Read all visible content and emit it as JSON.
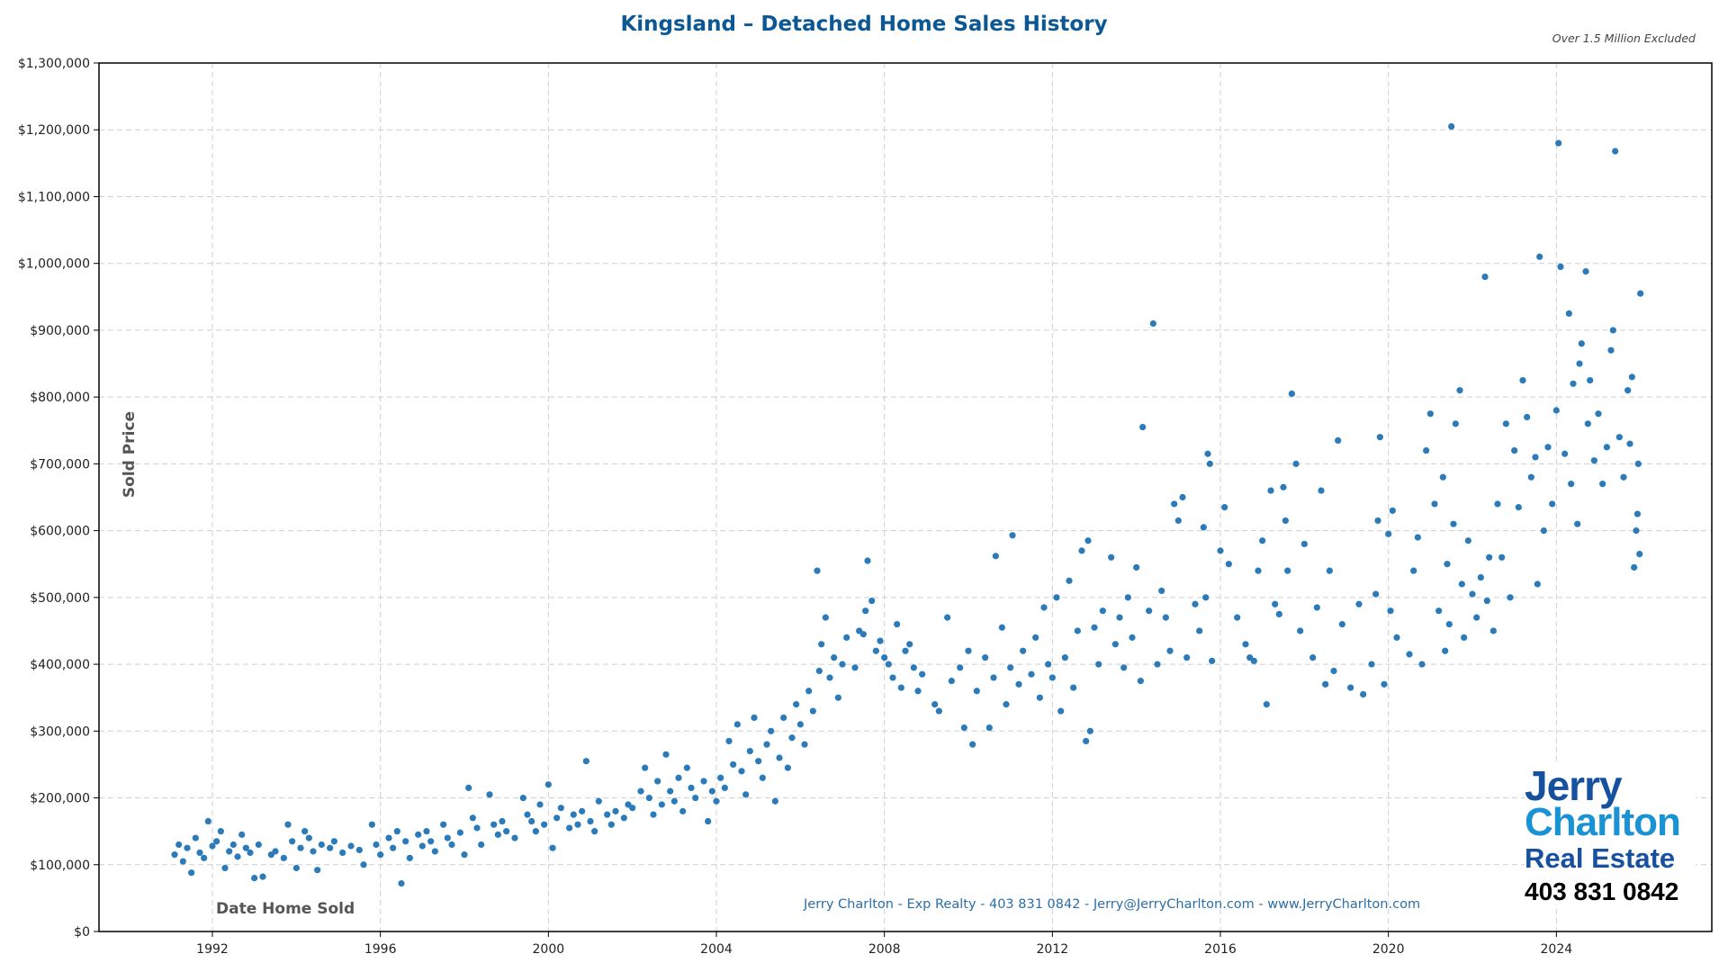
{
  "chart_data": {
    "type": "scatter",
    "title": "Kingsland – Detached Home Sales History",
    "subtitle": "Over 1.5 Million Excluded",
    "xlabel": "Date Home Sold",
    "ylabel": "Sold Price",
    "xlim": [
      1989.3,
      2027.7
    ],
    "ylim": [
      0,
      1300000
    ],
    "x_ticks": [
      "1992",
      "1996",
      "2000",
      "2004",
      "2008",
      "2012",
      "2016",
      "2020",
      "2024"
    ],
    "y_ticks": [
      "$0",
      "$100,000",
      "$200,000",
      "$300,000",
      "$400,000",
      "$500,000",
      "$600,000",
      "$700,000",
      "$800,000",
      "$900,000",
      "$1,000,000",
      "$1,100,000",
      "$1,200,000",
      "$1,300,000"
    ],
    "grid": true,
    "point_color": "#2b7bba",
    "points": [
      [
        1991.1,
        115000
      ],
      [
        1991.2,
        130000
      ],
      [
        1991.3,
        105000
      ],
      [
        1991.4,
        125000
      ],
      [
        1991.5,
        88000
      ],
      [
        1991.6,
        140000
      ],
      [
        1991.7,
        118000
      ],
      [
        1991.8,
        110000
      ],
      [
        1991.9,
        165000
      ],
      [
        1992.0,
        128000
      ],
      [
        1992.1,
        135000
      ],
      [
        1992.2,
        150000
      ],
      [
        1992.3,
        95000
      ],
      [
        1992.4,
        120000
      ],
      [
        1992.5,
        130000
      ],
      [
        1992.6,
        112000
      ],
      [
        1992.7,
        145000
      ],
      [
        1992.8,
        125000
      ],
      [
        1992.9,
        118000
      ],
      [
        1993.0,
        80000
      ],
      [
        1993.1,
        130000
      ],
      [
        1993.2,
        82000
      ],
      [
        1993.4,
        115000
      ],
      [
        1993.5,
        120000
      ],
      [
        1993.7,
        110000
      ],
      [
        1993.8,
        160000
      ],
      [
        1993.9,
        135000
      ],
      [
        1994.0,
        95000
      ],
      [
        1994.1,
        125000
      ],
      [
        1994.2,
        150000
      ],
      [
        1994.3,
        140000
      ],
      [
        1994.4,
        120000
      ],
      [
        1994.5,
        92000
      ],
      [
        1994.6,
        130000
      ],
      [
        1994.8,
        125000
      ],
      [
        1994.9,
        135000
      ],
      [
        1995.1,
        118000
      ],
      [
        1995.3,
        128000
      ],
      [
        1995.5,
        122000
      ],
      [
        1995.6,
        100000
      ],
      [
        1995.8,
        160000
      ],
      [
        1995.9,
        130000
      ],
      [
        1996.0,
        115000
      ],
      [
        1996.2,
        140000
      ],
      [
        1996.3,
        125000
      ],
      [
        1996.4,
        150000
      ],
      [
        1996.5,
        72000
      ],
      [
        1996.6,
        135000
      ],
      [
        1996.7,
        110000
      ],
      [
        1996.9,
        145000
      ],
      [
        1997.0,
        128000
      ],
      [
        1997.1,
        150000
      ],
      [
        1997.2,
        135000
      ],
      [
        1997.3,
        120000
      ],
      [
        1997.5,
        160000
      ],
      [
        1997.6,
        140000
      ],
      [
        1997.7,
        130000
      ],
      [
        1997.9,
        148000
      ],
      [
        1998.0,
        115000
      ],
      [
        1998.1,
        215000
      ],
      [
        1998.2,
        170000
      ],
      [
        1998.3,
        155000
      ],
      [
        1998.4,
        130000
      ],
      [
        1998.6,
        205000
      ],
      [
        1998.7,
        160000
      ],
      [
        1998.8,
        145000
      ],
      [
        1998.9,
        165000
      ],
      [
        1999.0,
        150000
      ],
      [
        1999.2,
        140000
      ],
      [
        1999.4,
        200000
      ],
      [
        1999.5,
        175000
      ],
      [
        1999.6,
        165000
      ],
      [
        1999.7,
        150000
      ],
      [
        1999.8,
        190000
      ],
      [
        1999.9,
        160000
      ],
      [
        2000.0,
        220000
      ],
      [
        2000.1,
        125000
      ],
      [
        2000.2,
        170000
      ],
      [
        2000.3,
        185000
      ],
      [
        2000.5,
        155000
      ],
      [
        2000.6,
        175000
      ],
      [
        2000.7,
        160000
      ],
      [
        2000.8,
        180000
      ],
      [
        2000.9,
        255000
      ],
      [
        2001.0,
        165000
      ],
      [
        2001.1,
        150000
      ],
      [
        2001.2,
        195000
      ],
      [
        2001.4,
        175000
      ],
      [
        2001.5,
        160000
      ],
      [
        2001.6,
        180000
      ],
      [
        2001.8,
        170000
      ],
      [
        2001.9,
        190000
      ],
      [
        2002.0,
        185000
      ],
      [
        2002.2,
        210000
      ],
      [
        2002.3,
        245000
      ],
      [
        2002.4,
        200000
      ],
      [
        2002.5,
        175000
      ],
      [
        2002.6,
        225000
      ],
      [
        2002.7,
        190000
      ],
      [
        2002.8,
        265000
      ],
      [
        2002.9,
        210000
      ],
      [
        2003.0,
        195000
      ],
      [
        2003.1,
        230000
      ],
      [
        2003.2,
        180000
      ],
      [
        2003.3,
        245000
      ],
      [
        2003.4,
        215000
      ],
      [
        2003.5,
        200000
      ],
      [
        2003.7,
        225000
      ],
      [
        2003.8,
        165000
      ],
      [
        2003.9,
        210000
      ],
      [
        2004.0,
        195000
      ],
      [
        2004.1,
        230000
      ],
      [
        2004.2,
        215000
      ],
      [
        2004.3,
        285000
      ],
      [
        2004.4,
        250000
      ],
      [
        2004.5,
        310000
      ],
      [
        2004.6,
        240000
      ],
      [
        2004.7,
        205000
      ],
      [
        2004.8,
        270000
      ],
      [
        2004.9,
        320000
      ],
      [
        2005.0,
        255000
      ],
      [
        2005.1,
        230000
      ],
      [
        2005.2,
        280000
      ],
      [
        2005.3,
        300000
      ],
      [
        2005.4,
        195000
      ],
      [
        2005.5,
        260000
      ],
      [
        2005.6,
        320000
      ],
      [
        2005.7,
        245000
      ],
      [
        2005.8,
        290000
      ],
      [
        2005.9,
        340000
      ],
      [
        2006.0,
        310000
      ],
      [
        2006.1,
        280000
      ],
      [
        2006.2,
        360000
      ],
      [
        2006.3,
        330000
      ],
      [
        2006.4,
        540000
      ],
      [
        2006.45,
        390000
      ],
      [
        2006.5,
        430000
      ],
      [
        2006.6,
        470000
      ],
      [
        2006.7,
        380000
      ],
      [
        2006.8,
        410000
      ],
      [
        2006.9,
        350000
      ],
      [
        2007.0,
        400000
      ],
      [
        2007.1,
        440000
      ],
      [
        2007.3,
        395000
      ],
      [
        2007.4,
        450000
      ],
      [
        2007.5,
        445000
      ],
      [
        2007.55,
        480000
      ],
      [
        2007.6,
        555000
      ],
      [
        2007.7,
        495000
      ],
      [
        2007.8,
        420000
      ],
      [
        2007.9,
        435000
      ],
      [
        2008.0,
        410000
      ],
      [
        2008.1,
        400000
      ],
      [
        2008.2,
        380000
      ],
      [
        2008.3,
        460000
      ],
      [
        2008.4,
        365000
      ],
      [
        2008.5,
        420000
      ],
      [
        2008.6,
        430000
      ],
      [
        2008.7,
        395000
      ],
      [
        2008.8,
        360000
      ],
      [
        2008.9,
        385000
      ],
      [
        2009.2,
        340000
      ],
      [
        2009.3,
        330000
      ],
      [
        2009.5,
        470000
      ],
      [
        2009.6,
        375000
      ],
      [
        2009.8,
        395000
      ],
      [
        2009.9,
        305000
      ],
      [
        2010.0,
        420000
      ],
      [
        2010.1,
        280000
      ],
      [
        2010.2,
        360000
      ],
      [
        2010.4,
        410000
      ],
      [
        2010.5,
        305000
      ],
      [
        2010.6,
        380000
      ],
      [
        2010.65,
        562000
      ],
      [
        2010.8,
        455000
      ],
      [
        2010.9,
        340000
      ],
      [
        2011.0,
        395000
      ],
      [
        2011.05,
        593000
      ],
      [
        2011.2,
        370000
      ],
      [
        2011.3,
        420000
      ],
      [
        2011.5,
        385000
      ],
      [
        2011.6,
        440000
      ],
      [
        2011.7,
        350000
      ],
      [
        2011.8,
        485000
      ],
      [
        2011.9,
        400000
      ],
      [
        2012.0,
        380000
      ],
      [
        2012.1,
        500000
      ],
      [
        2012.2,
        330000
      ],
      [
        2012.3,
        410000
      ],
      [
        2012.4,
        525000
      ],
      [
        2012.5,
        365000
      ],
      [
        2012.6,
        450000
      ],
      [
        2012.7,
        570000
      ],
      [
        2012.8,
        285000
      ],
      [
        2012.85,
        585000
      ],
      [
        2012.9,
        300000
      ],
      [
        2013.0,
        455000
      ],
      [
        2013.1,
        400000
      ],
      [
        2013.2,
        480000
      ],
      [
        2013.4,
        560000
      ],
      [
        2013.5,
        430000
      ],
      [
        2013.6,
        470000
      ],
      [
        2013.7,
        395000
      ],
      [
        2013.8,
        500000
      ],
      [
        2013.9,
        440000
      ],
      [
        2014.0,
        545000
      ],
      [
        2014.1,
        375000
      ],
      [
        2014.15,
        755000
      ],
      [
        2014.3,
        480000
      ],
      [
        2014.4,
        910000
      ],
      [
        2014.5,
        400000
      ],
      [
        2014.6,
        510000
      ],
      [
        2014.7,
        470000
      ],
      [
        2014.8,
        420000
      ],
      [
        2014.9,
        640000
      ],
      [
        2015.0,
        615000
      ],
      [
        2015.1,
        650000
      ],
      [
        2015.2,
        410000
      ],
      [
        2015.4,
        490000
      ],
      [
        2015.5,
        450000
      ],
      [
        2015.6,
        605000
      ],
      [
        2015.65,
        500000
      ],
      [
        2015.7,
        715000
      ],
      [
        2015.75,
        700000
      ],
      [
        2015.8,
        405000
      ],
      [
        2016.0,
        570000
      ],
      [
        2016.1,
        635000
      ],
      [
        2016.2,
        550000
      ],
      [
        2016.4,
        470000
      ],
      [
        2016.6,
        430000
      ],
      [
        2016.7,
        410000
      ],
      [
        2016.8,
        405000
      ],
      [
        2016.9,
        540000
      ],
      [
        2017.0,
        585000
      ],
      [
        2017.1,
        340000
      ],
      [
        2017.2,
        660000
      ],
      [
        2017.3,
        490000
      ],
      [
        2017.4,
        475000
      ],
      [
        2017.5,
        665000
      ],
      [
        2017.55,
        615000
      ],
      [
        2017.6,
        540000
      ],
      [
        2017.7,
        805000
      ],
      [
        2017.8,
        700000
      ],
      [
        2017.9,
        450000
      ],
      [
        2018.0,
        580000
      ],
      [
        2018.2,
        410000
      ],
      [
        2018.3,
        485000
      ],
      [
        2018.4,
        660000
      ],
      [
        2018.5,
        370000
      ],
      [
        2018.6,
        540000
      ],
      [
        2018.7,
        390000
      ],
      [
        2018.8,
        735000
      ],
      [
        2018.9,
        460000
      ],
      [
        2019.1,
        365000
      ],
      [
        2019.3,
        490000
      ],
      [
        2019.4,
        355000
      ],
      [
        2019.6,
        400000
      ],
      [
        2019.7,
        505000
      ],
      [
        2019.75,
        615000
      ],
      [
        2019.8,
        740000
      ],
      [
        2019.9,
        370000
      ],
      [
        2020.0,
        595000
      ],
      [
        2020.05,
        480000
      ],
      [
        2020.1,
        630000
      ],
      [
        2020.2,
        440000
      ],
      [
        2020.5,
        415000
      ],
      [
        2020.6,
        540000
      ],
      [
        2020.7,
        590000
      ],
      [
        2020.8,
        400000
      ],
      [
        2020.9,
        720000
      ],
      [
        2021.0,
        775000
      ],
      [
        2021.1,
        640000
      ],
      [
        2021.2,
        480000
      ],
      [
        2021.3,
        680000
      ],
      [
        2021.35,
        420000
      ],
      [
        2021.4,
        550000
      ],
      [
        2021.45,
        460000
      ],
      [
        2021.5,
        1205000
      ],
      [
        2021.55,
        610000
      ],
      [
        2021.6,
        760000
      ],
      [
        2021.7,
        810000
      ],
      [
        2021.75,
        520000
      ],
      [
        2021.8,
        440000
      ],
      [
        2021.9,
        585000
      ],
      [
        2022.0,
        505000
      ],
      [
        2022.1,
        470000
      ],
      [
        2022.2,
        530000
      ],
      [
        2022.3,
        980000
      ],
      [
        2022.35,
        495000
      ],
      [
        2022.4,
        560000
      ],
      [
        2022.5,
        450000
      ],
      [
        2022.6,
        640000
      ],
      [
        2022.7,
        560000
      ],
      [
        2022.8,
        760000
      ],
      [
        2022.9,
        500000
      ],
      [
        2023.0,
        720000
      ],
      [
        2023.1,
        635000
      ],
      [
        2023.2,
        825000
      ],
      [
        2023.3,
        770000
      ],
      [
        2023.4,
        680000
      ],
      [
        2023.5,
        710000
      ],
      [
        2023.55,
        520000
      ],
      [
        2023.6,
        1010000
      ],
      [
        2023.7,
        600000
      ],
      [
        2023.8,
        725000
      ],
      [
        2023.9,
        640000
      ],
      [
        2024.0,
        780000
      ],
      [
        2024.05,
        1180000
      ],
      [
        2024.1,
        995000
      ],
      [
        2024.2,
        715000
      ],
      [
        2024.3,
        925000
      ],
      [
        2024.35,
        670000
      ],
      [
        2024.4,
        820000
      ],
      [
        2024.5,
        610000
      ],
      [
        2024.55,
        850000
      ],
      [
        2024.6,
        880000
      ],
      [
        2024.7,
        988000
      ],
      [
        2024.75,
        760000
      ],
      [
        2024.8,
        825000
      ],
      [
        2024.9,
        705000
      ],
      [
        2025.0,
        775000
      ],
      [
        2025.1,
        670000
      ],
      [
        2025.2,
        725000
      ],
      [
        2025.3,
        870000
      ],
      [
        2025.35,
        900000
      ],
      [
        2025.4,
        1168000
      ],
      [
        2025.5,
        740000
      ],
      [
        2025.6,
        680000
      ],
      [
        2025.7,
        810000
      ],
      [
        2025.75,
        730000
      ],
      [
        2025.8,
        830000
      ],
      [
        2025.85,
        545000
      ],
      [
        2025.9,
        600000
      ],
      [
        2025.95,
        700000
      ],
      [
        2026.0,
        955000
      ],
      [
        2025.98,
        565000
      ],
      [
        2025.93,
        625000
      ]
    ]
  },
  "footer": "Jerry Charlton - Exp Realty - 403 831 0842 - Jerry@JerryCharlton.com - www.JerryCharlton.com",
  "logo": {
    "line1": "Jerry",
    "line2": "Charlton",
    "line3": "Real Estate",
    "phone": "403 831 0842"
  }
}
